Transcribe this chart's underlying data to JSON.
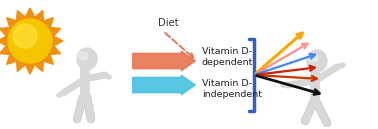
{
  "background_color": "#ffffff",
  "arrow_orange_color": "#E8704A",
  "arrow_orange_label": "Vitamin D-\ndependent",
  "arrow_blue_color": "#40C0E0",
  "arrow_blue_label": "Vitamin D-\nindependent",
  "diet_label": "Diet",
  "diet_arrow_color": "#E87050",
  "bracket_color": "#3060C0",
  "figure_color": "#D8D8D8",
  "figure_shadow": "#B8B8B8",
  "sun_inner": "#F5C500",
  "sun_outer": "#F09010",
  "sun_ray": "#F09010",
  "label_fontsize": 6.8,
  "diet_fontsize": 7.2,
  "fan_arrows": [
    {
      "color": "#FFA500",
      "lw": 2.2
    },
    {
      "color": "#FF9090",
      "lw": 1.6
    },
    {
      "color": "#4488EE",
      "lw": 1.6
    },
    {
      "color": "#CC2000",
      "lw": 1.6
    },
    {
      "color": "#CC3300",
      "lw": 1.6
    },
    {
      "color": "#111111",
      "lw": 2.0
    }
  ]
}
